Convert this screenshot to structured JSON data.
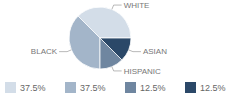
{
  "chart_data": {
    "type": "pie",
    "categories": [
      "WHITE",
      "BLACK",
      "HISPANIC",
      "ASIAN"
    ],
    "values": [
      37.5,
      37.5,
      12.5,
      12.5
    ],
    "value_labels": [
      "37.5%",
      "37.5%",
      "12.5%",
      "12.5%"
    ],
    "colors": [
      "#d3dde8",
      "#a3b5c9",
      "#6f86a0",
      "#2b4868"
    ],
    "legend": "bottom"
  }
}
